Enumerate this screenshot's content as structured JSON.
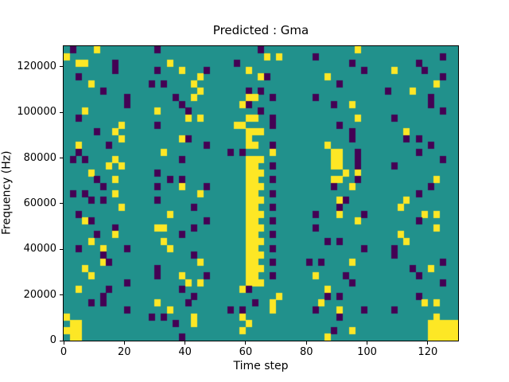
{
  "chart_data": {
    "type": "heatmap",
    "title": "Predicted : Gma",
    "xlabel": "Time step",
    "ylabel": "Frequency (Hz)",
    "xlim": [
      0,
      130
    ],
    "ylim": [
      0,
      129000
    ],
    "x_ticks": [
      0,
      20,
      40,
      60,
      80,
      100,
      120
    ],
    "y_ticks": [
      0,
      20000,
      40000,
      60000,
      80000,
      100000,
      120000
    ],
    "colors": {
      "mid": "#21918c",
      "low": "#440154",
      "high": "#fde725"
    },
    "grid_cols": 65,
    "grid_rows": 43,
    "time_steps_per_col": 2,
    "hz_per_row": 3000,
    "cell_legend": {
      ".": "teal background (mid value)",
      "p": "dark purple (low value)",
      "y": "yellow (high value)"
    },
    "grid_encoding": "Each row (top=high frequency) is five 13-cell pattern chunks joined left to right; chunk strings are in 'patterns'.",
    "patterns": {
      "a0": ".............",
      "a1": "..p..........",
      "a2": "......p......",
      "a3": "..........p..",
      "a4": ".p...y.......",
      "a5": "....y........",
      "a6": ".........y...",
      "a7": "..y....p.....",
      "a8": ".....p..y....",
      "b0": "...yp........",
      "b1": "......yp.....",
      "b2": ".p.p....y....",
      "b3": "..yy....p....",
      "b4": "....p.p......",
      "b5": ".......y.y...",
      "b6": "..p...y...p..",
      "b7": "y............",
      "b8": "........p....",
      "b9": "...y.........",
      "S": "....yy..p....",
      "S2": "....yyy......",
      "P4": ".....yy..p...",
      "Y5": "........yyyyy",
      "BL": ".yy..........",
      "YB": "yyy.........."
    },
    "rows": [
      [
        "a4",
        "a1",
        "a2",
        "a6",
        "a0"
      ],
      [
        "b7",
        "a0",
        "b5",
        "a1",
        "a3"
      ],
      [
        "b3",
        "a5",
        "a1",
        "b8",
        "a2"
      ],
      [
        "b8",
        "b6",
        "a5",
        "a3",
        "a7"
      ],
      [
        "a1",
        "a6",
        "b1",
        "a5",
        "a3"
      ],
      [
        "a5",
        "b2",
        "a0",
        "a2",
        "a6"
      ],
      [
        "a2",
        "a6",
        "b4",
        "a0",
        "a4"
      ],
      [
        "a3",
        "a8",
        "S",
        "a1",
        "b8"
      ],
      [
        "a3",
        "a2",
        "b0",
        "a8",
        "b8"
      ],
      [
        "b9",
        "a7",
        "a2",
        "a0",
        "a3"
      ],
      [
        "a1",
        "b5",
        "S",
        "a6",
        "a1"
      ],
      [
        "a6",
        "a1",
        "b3",
        "a2",
        "a0"
      ],
      [
        "a8",
        "a0",
        "S2",
        "b8",
        "a5"
      ],
      [
        "a6",
        "b1",
        "a5",
        "b8",
        "b4"
      ],
      [
        "a7",
        "a3",
        "S",
        "a5",
        "b8"
      ],
      [
        "a1",
        "b9",
        "b2",
        "P4",
        "a2"
      ],
      [
        "b2",
        "a2",
        "S2",
        "P4",
        "a3"
      ],
      [
        "b5",
        "a0",
        "S",
        "P4",
        "a1"
      ],
      [
        "a5",
        "a1",
        "S2",
        "b5",
        "a0"
      ],
      [
        "a8",
        "b4",
        "S",
        "P4",
        "a6"
      ],
      [
        "a2",
        "b6",
        "S2",
        "a8",
        "b8"
      ],
      [
        "b2",
        "a6",
        "S",
        "a0",
        "a2"
      ],
      [
        "b4",
        "a1",
        "S2",
        "b1",
        "a5"
      ],
      [
        "a6",
        "b8",
        "S",
        "a2",
        "b9"
      ],
      [
        "a1",
        "a5",
        "S2",
        "b6",
        "b5"
      ],
      [
        "b0",
        "a3",
        "S",
        "a6",
        "a2"
      ],
      [
        "b8",
        "b3",
        "S2",
        "a1",
        "a6"
      ],
      [
        "a8",
        "a2",
        "S",
        "a0",
        "b9"
      ],
      [
        "a5",
        "b9",
        "S2",
        "b4",
        "a5"
      ],
      [
        "b6",
        "a5",
        "S",
        "a3",
        "a1"
      ],
      [
        "a2",
        "b8",
        "S2",
        "a0",
        "a1"
      ],
      [
        "b1",
        "a6",
        "S",
        "b2",
        "a3"
      ],
      [
        "b9",
        "a1",
        "S2",
        "a0",
        "a8"
      ],
      [
        "a5",
        "b6",
        "S",
        "a7",
        "a2"
      ],
      [
        "a3",
        "b5",
        "S2",
        "b8",
        "a3"
      ],
      [
        "a7",
        "a2",
        "b0",
        "a5",
        "a0"
      ],
      [
        "a2",
        "b8",
        "a6",
        "b4",
        "a2"
      ],
      [
        "b4",
        "a7",
        "a8",
        "b9",
        "b5"
      ],
      [
        "a3",
        "a5",
        "b2",
        "b6",
        "a1"
      ],
      [
        "b7",
        "b2",
        "b9",
        "a2",
        "a6"
      ],
      [
        "BL",
        "a8",
        "a5",
        "a0",
        "Y5"
      ],
      [
        "YB",
        "a0",
        "b9",
        "a8",
        "Y5"
      ],
      [
        "BL",
        "a2",
        "a0",
        "a5",
        "Y5"
      ]
    ]
  }
}
